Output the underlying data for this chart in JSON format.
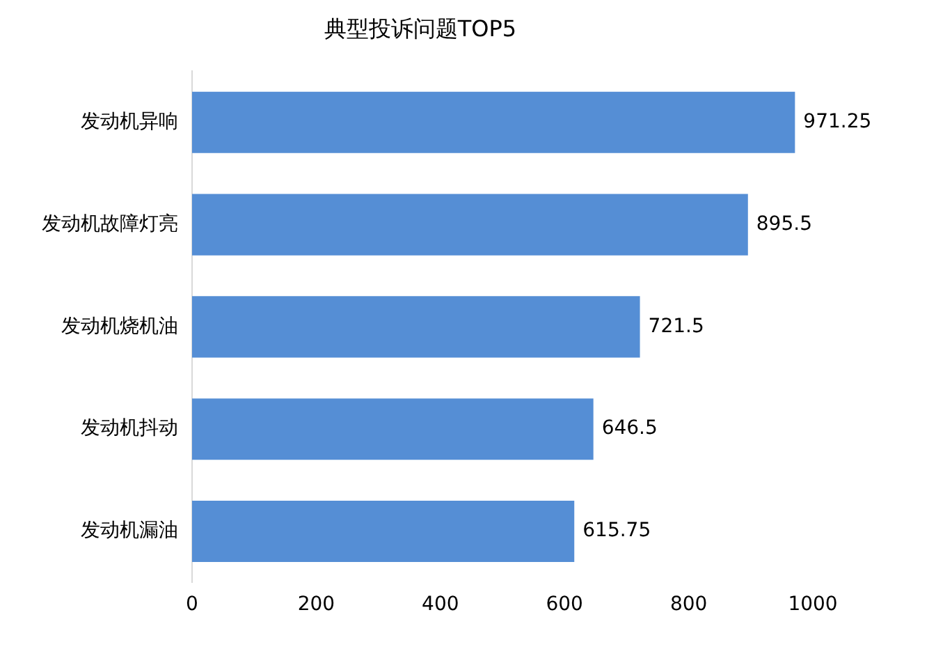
{
  "chart_data": {
    "type": "bar",
    "orientation": "horizontal",
    "title": "典型投诉问题TOP5",
    "categories": [
      "发动机异响",
      "发动机故障灯亮",
      "发动机烧机油",
      "发动机抖动",
      "发动机漏油"
    ],
    "values": [
      971.25,
      895.5,
      721.5,
      646.5,
      615.75
    ],
    "color": "#558ed5",
    "xlim": [
      0,
      1000
    ],
    "xticks": [
      0,
      200,
      400,
      600,
      800,
      1000
    ],
    "grid": false,
    "legend": false,
    "data_labels": true
  }
}
